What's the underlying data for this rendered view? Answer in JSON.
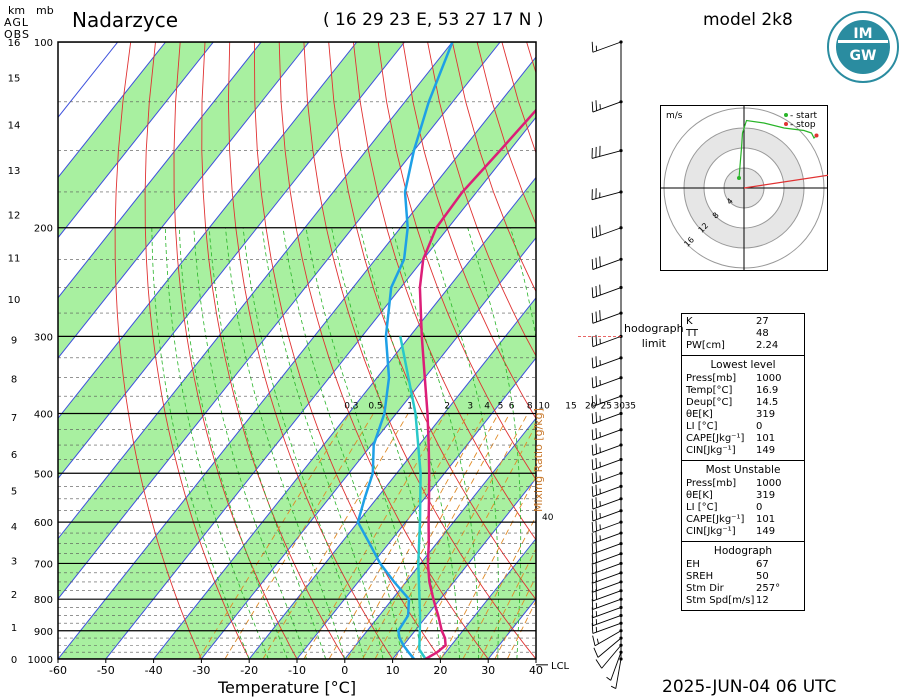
{
  "title": "Nadarzyce",
  "coords": "( 16 29 23 E, 53 27 17 N )",
  "model": "model 2k8",
  "datetime": "2025-JUN-04   06 UTC",
  "logo_text": "IMGW",
  "axis_header": {
    "km": "km",
    "mb": "mb",
    "agl": "AGL",
    "obs": "OBS"
  },
  "x_axis_label": "Temperature [°C]",
  "mixing_ratio_label": "Mixing Ratio [g/kg]",
  "lcl_label": "LCL",
  "hodograph_limit": [
    "hodograph",
    "limit"
  ],
  "chart_data": {
    "type": "skew-t",
    "pressure_ticks": [
      100,
      200,
      300,
      400,
      500,
      600,
      700,
      800,
      900,
      1000
    ],
    "height_ticks_km": [
      0,
      1,
      2,
      3,
      4,
      5,
      6,
      7,
      8,
      9,
      10,
      11,
      12,
      13,
      14,
      15,
      16
    ],
    "temperature_ticks": [
      -60,
      -50,
      -40,
      -30,
      -20,
      -10,
      0,
      10,
      20,
      30,
      40
    ],
    "mixing_ratio_labels": [
      "0.3",
      "0.5",
      "1",
      "2",
      "3",
      "4",
      "5",
      "6",
      "8",
      "10",
      "15",
      "20",
      "25",
      "30",
      "35"
    ],
    "mixing_ratio_extra_label": "40",
    "temperature_profile": [
      {
        "p": 1000,
        "t": 16.9
      },
      {
        "p": 975,
        "t": 18.2
      },
      {
        "p": 950,
        "t": 18.8
      },
      {
        "p": 925,
        "t": 17.5
      },
      {
        "p": 900,
        "t": 15.6
      },
      {
        "p": 850,
        "t": 12.3
      },
      {
        "p": 800,
        "t": 8.6
      },
      {
        "p": 750,
        "t": 4.9
      },
      {
        "p": 700,
        "t": 1.5
      },
      {
        "p": 650,
        "t": -1.6
      },
      {
        "p": 600,
        "t": -5.2
      },
      {
        "p": 550,
        "t": -9.0
      },
      {
        "p": 500,
        "t": -13.2
      },
      {
        "p": 450,
        "t": -18.0
      },
      {
        "p": 400,
        "t": -23.5
      },
      {
        "p": 350,
        "t": -30.0
      },
      {
        "p": 300,
        "t": -37.5
      },
      {
        "p": 250,
        "t": -46.0
      },
      {
        "p": 225,
        "t": -50.0
      },
      {
        "p": 200,
        "t": -52.5
      },
      {
        "p": 175,
        "t": -53.0
      },
      {
        "p": 150,
        "t": -52.0
      },
      {
        "p": 125,
        "t": -51.0
      },
      {
        "p": 100,
        "t": -51.5
      }
    ],
    "dewpoint_profile": [
      {
        "p": 1000,
        "t": 14.5
      },
      {
        "p": 975,
        "t": 12.2
      },
      {
        "p": 950,
        "t": 10.0
      },
      {
        "p": 925,
        "t": 8.0
      },
      {
        "p": 900,
        "t": 6.5
      },
      {
        "p": 850,
        "t": 6.0
      },
      {
        "p": 800,
        "t": 3.5
      },
      {
        "p": 750,
        "t": -2.5
      },
      {
        "p": 700,
        "t": -8.5
      },
      {
        "p": 650,
        "t": -14.0
      },
      {
        "p": 600,
        "t": -20.0
      },
      {
        "p": 550,
        "t": -22.5
      },
      {
        "p": 500,
        "t": -25.0
      },
      {
        "p": 450,
        "t": -29.5
      },
      {
        "p": 400,
        "t": -32.5
      },
      {
        "p": 350,
        "t": -37.5
      },
      {
        "p": 300,
        "t": -45.0
      },
      {
        "p": 250,
        "t": -52.0
      },
      {
        "p": 225,
        "t": -54.0
      },
      {
        "p": 200,
        "t": -58.5
      },
      {
        "p": 175,
        "t": -65.0
      },
      {
        "p": 150,
        "t": -70.0
      },
      {
        "p": 125,
        "t": -75.0
      },
      {
        "p": 100,
        "t": -80.0
      }
    ],
    "parcel_profile": [
      {
        "p": 1000,
        "t": 16.9
      },
      {
        "p": 965,
        "t": 14.0
      },
      {
        "p": 900,
        "t": 11.0
      },
      {
        "p": 850,
        "t": 8.5
      },
      {
        "p": 800,
        "t": 5.7
      },
      {
        "p": 700,
        "t": -0.5
      },
      {
        "p": 600,
        "t": -7.0
      },
      {
        "p": 500,
        "t": -15.0
      },
      {
        "p": 400,
        "t": -26.0
      },
      {
        "p": 300,
        "t": -42.0
      }
    ],
    "lcl_pressure": 970,
    "hodograph_limit_pressure": 300,
    "colors": {
      "temperature": "#dc1e78",
      "dewpoint": "#1ea0e6",
      "parcel": "#28c8c8",
      "isotherm_band": "#a8f0a0",
      "dry_adiabat": "#e03232",
      "moist_adiabat": "#28b428",
      "mixing_ratio": "#e08c28",
      "isotherm": "#3c50dc"
    }
  },
  "hodograph": {
    "units": "m/s",
    "rings": [
      "4",
      "8",
      "12",
      "16"
    ],
    "legend": [
      {
        "label": "- start",
        "color": "#28b428"
      },
      {
        "label": "- stop",
        "color": "#e03232"
      }
    ],
    "points": [
      [
        -1,
        2
      ],
      [
        -0.5,
        8
      ],
      [
        -0.3,
        11
      ],
      [
        0.5,
        13.5
      ],
      [
        4,
        13
      ],
      [
        8,
        12
      ],
      [
        12,
        11.5
      ],
      [
        13.5,
        11
      ],
      [
        14,
        10
      ],
      [
        14.5,
        10.5
      ]
    ],
    "storm_motion": [
      23,
      3.5
    ]
  },
  "stats": {
    "indices": [
      {
        "label": "K",
        "value": "27"
      },
      {
        "label": "TT",
        "value": "48"
      },
      {
        "label": "PW[cm]",
        "value": "2.24"
      }
    ],
    "lowest_level": {
      "title": "Lowest level",
      "rows": [
        {
          "label": "Press[mb]",
          "value": "1000"
        },
        {
          "label": "Temp[°C]",
          "value": "16.9"
        },
        {
          "label": "Deup[°C]",
          "value": "14.5"
        },
        {
          "label": "θE[K]",
          "value": "319"
        },
        {
          "label": "LI [°C]",
          "value": "0"
        },
        {
          "label": "CAPE[Jkg⁻¹]",
          "value": "101"
        },
        {
          "label": "CIN[Jkg⁻¹]",
          "value": "149"
        }
      ]
    },
    "most_unstable": {
      "title": "Most Unstable",
      "rows": [
        {
          "label": "Press[mb]",
          "value": "1000"
        },
        {
          "label": "θE[K]",
          "value": "319"
        },
        {
          "label": "LI [°C]",
          "value": "0"
        },
        {
          "label": "CAPE[Jkg⁻¹]",
          "value": "101"
        },
        {
          "label": "CIN[Jkg⁻¹]",
          "value": "149"
        }
      ]
    },
    "hodograph_box": {
      "title": "Hodograph",
      "rows": [
        {
          "label": "EH",
          "value": "67"
        },
        {
          "label": "SREH",
          "value": "50"
        },
        {
          "label": "Stm Dir",
          "value": "257°"
        },
        {
          "label": "Stm Spd[m/s]",
          "value": "12"
        }
      ]
    }
  },
  "wind_barbs": [
    {
      "p": 100,
      "dir": 250,
      "spd": 15
    },
    {
      "p": 125,
      "dir": 250,
      "spd": 25
    },
    {
      "p": 150,
      "dir": 255,
      "spd": 30
    },
    {
      "p": 175,
      "dir": 255,
      "spd": 25
    },
    {
      "p": 200,
      "dir": 250,
      "spd": 30
    },
    {
      "p": 225,
      "dir": 250,
      "spd": 30
    },
    {
      "p": 250,
      "dir": 250,
      "spd": 30
    },
    {
      "p": 275,
      "dir": 250,
      "spd": 30
    },
    {
      "p": 300,
      "dir": 250,
      "spd": 25
    },
    {
      "p": 325,
      "dir": 250,
      "spd": 25
    },
    {
      "p": 350,
      "dir": 250,
      "spd": 25
    },
    {
      "p": 375,
      "dir": 250,
      "spd": 25
    },
    {
      "p": 400,
      "dir": 250,
      "spd": 25
    },
    {
      "p": 425,
      "dir": 250,
      "spd": 25
    },
    {
      "p": 450,
      "dir": 250,
      "spd": 25
    },
    {
      "p": 475,
      "dir": 250,
      "spd": 25
    },
    {
      "p": 500,
      "dir": 250,
      "spd": 25
    },
    {
      "p": 525,
      "dir": 250,
      "spd": 25
    },
    {
      "p": 550,
      "dir": 250,
      "spd": 25
    },
    {
      "p": 575,
      "dir": 250,
      "spd": 25
    },
    {
      "p": 600,
      "dir": 250,
      "spd": 25
    },
    {
      "p": 625,
      "dir": 250,
      "spd": 25
    },
    {
      "p": 650,
      "dir": 250,
      "spd": 20
    },
    {
      "p": 675,
      "dir": 250,
      "spd": 20
    },
    {
      "p": 700,
      "dir": 250,
      "spd": 20
    },
    {
      "p": 725,
      "dir": 250,
      "spd": 20
    },
    {
      "p": 750,
      "dir": 250,
      "spd": 20
    },
    {
      "p": 775,
      "dir": 250,
      "spd": 20
    },
    {
      "p": 800,
      "dir": 250,
      "spd": 15
    },
    {
      "p": 825,
      "dir": 250,
      "spd": 15
    },
    {
      "p": 850,
      "dir": 250,
      "spd": 15
    },
    {
      "p": 875,
      "dir": 250,
      "spd": 15
    },
    {
      "p": 900,
      "dir": 240,
      "spd": 15
    },
    {
      "p": 925,
      "dir": 230,
      "spd": 10
    },
    {
      "p": 950,
      "dir": 220,
      "spd": 10
    },
    {
      "p": 975,
      "dir": 200,
      "spd": 5
    },
    {
      "p": 1000,
      "dir": 190,
      "spd": 5
    }
  ]
}
